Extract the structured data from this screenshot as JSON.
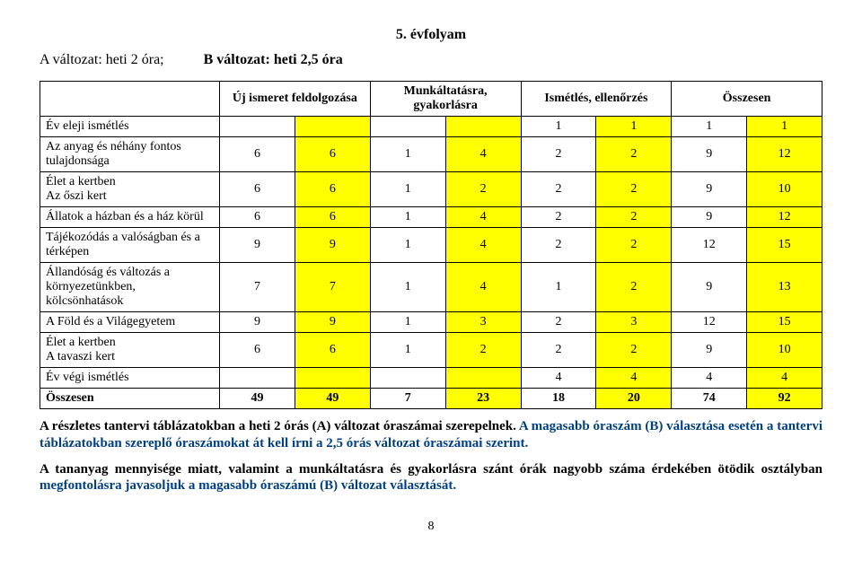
{
  "header": {
    "title": "5. évfolyam",
    "variant_a": "A változat: heti 2 óra;",
    "variant_b": "B változat: heti 2,5 óra"
  },
  "table": {
    "columns": [
      {
        "label": "",
        "span": 1
      },
      {
        "label": "Új ismeret feldolgozása",
        "span": 2
      },
      {
        "label": "Munkáltatásra, gyakorlásra",
        "span": 2
      },
      {
        "label": "Ismétlés, ellenőrzés",
        "span": 2
      },
      {
        "label": "Összesen",
        "span": 2
      }
    ],
    "yellow_cols": [
      2,
      4,
      6,
      8
    ],
    "rows": [
      {
        "label": "Év eleji ismétlés",
        "cells": [
          "",
          "",
          "",
          "",
          "1",
          "1",
          "1",
          "1"
        ]
      },
      {
        "label": "Az anyag és néhány fontos tulajdonsága",
        "cells": [
          "6",
          "6",
          "1",
          "4",
          "2",
          "2",
          "9",
          "12"
        ]
      },
      {
        "label": "Élet a kertben\nAz őszi kert",
        "cells": [
          "6",
          "6",
          "1",
          "2",
          "2",
          "2",
          "9",
          "10"
        ]
      },
      {
        "label": "Állatok a házban és a ház körül",
        "cells": [
          "6",
          "6",
          "1",
          "4",
          "2",
          "2",
          "9",
          "12"
        ]
      },
      {
        "label": "Tájékozódás a valóságban és a térképen",
        "cells": [
          "9",
          "9",
          "1",
          "4",
          "2",
          "2",
          "12",
          "15"
        ]
      },
      {
        "label": "Állandóság és változás a környezetünkben, kölcsönhatások",
        "cells": [
          "7",
          "7",
          "1",
          "4",
          "1",
          "2",
          "9",
          "13"
        ]
      },
      {
        "label": "A Föld és a Világegyetem",
        "cells": [
          "9",
          "9",
          "1",
          "3",
          "2",
          "3",
          "12",
          "15"
        ]
      },
      {
        "label": "Élet a kertben\nA tavaszi kert",
        "cells": [
          "6",
          "6",
          "1",
          "2",
          "2",
          "2",
          "9",
          "10"
        ]
      },
      {
        "label": "Év végi ismétlés",
        "cells": [
          "",
          "",
          "",
          "",
          "4",
          "4",
          "4",
          "4"
        ]
      },
      {
        "label": "Összesen",
        "cells": [
          "49",
          "49",
          "7",
          "23",
          "18",
          "20",
          "74",
          "92"
        ],
        "total": true
      }
    ]
  },
  "paragraphs": {
    "p1_black": "A részletes tantervi táblázatokban a heti 2 órás (A) változat óraszámai szerepelnek. ",
    "p1_blue": "A magasabb óraszám (B) választása esetén a tantervi táblázatokban szereplő óraszámokat át kell írni a 2,5 órás változat óraszámai szerint.",
    "p2_black": "A tananyag mennyisége miatt, valamint a munkáltatásra és gyakorlásra szánt órák nagyobb száma érdekében ötödik osztályban ",
    "p2_blue": "megfontolásra javasoljuk a magasabb óraszámú (B) változat választását."
  },
  "page_number": "8"
}
